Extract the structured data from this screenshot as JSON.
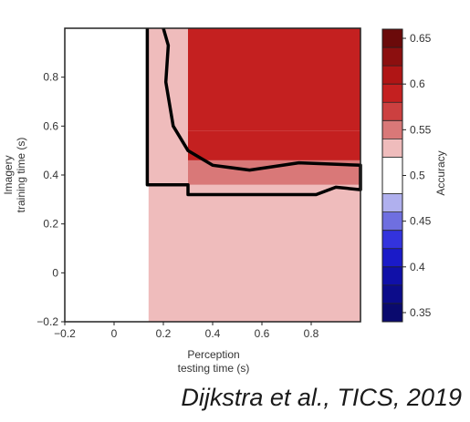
{
  "caption": "Dijkstra et al., TICS, 2019",
  "chart_data": {
    "type": "heatmap",
    "xlabel_lines": [
      "Perception",
      "testing time (s)"
    ],
    "ylabel_lines": [
      "Imagery",
      "training time (s)"
    ],
    "xlim": [
      -0.2,
      1.0
    ],
    "ylim": [
      -0.2,
      1.0
    ],
    "x_ticks": [
      -0.2,
      0,
      0.2,
      0.4,
      0.6,
      0.8
    ],
    "x_tick_labels": [
      "−0.2",
      "0",
      "0.2",
      "0.4",
      "0.6",
      "0.8"
    ],
    "y_ticks": [
      -0.2,
      0,
      0.2,
      0.4,
      0.6,
      0.8
    ],
    "y_tick_labels": [
      "−0.2",
      "0",
      "0.2",
      "0.4",
      "0.6",
      "0.8"
    ],
    "colorbar": {
      "label": "Accuracy",
      "range": [
        0.34,
        0.66
      ],
      "tick_values": [
        0.65,
        0.6,
        0.55,
        0.5,
        0.45,
        0.4,
        0.35
      ],
      "tick_labels": [
        "0.65",
        "0.6",
        "0.55",
        "0.5",
        "0.45",
        "0.4",
        "0.35"
      ],
      "bins": [
        {
          "from": 0.34,
          "to": 0.36,
          "color": "#0a0a6e"
        },
        {
          "from": 0.36,
          "to": 0.38,
          "color": "#0c0c8a"
        },
        {
          "from": 0.38,
          "to": 0.4,
          "color": "#1010a8"
        },
        {
          "from": 0.4,
          "to": 0.42,
          "color": "#1a1ac8"
        },
        {
          "from": 0.42,
          "to": 0.44,
          "color": "#3333dd"
        },
        {
          "from": 0.44,
          "to": 0.46,
          "color": "#6f6fe0"
        },
        {
          "from": 0.46,
          "to": 0.48,
          "color": "#b0b0ee"
        },
        {
          "from": 0.48,
          "to": 0.52,
          "color": "#ffffff"
        },
        {
          "from": 0.52,
          "to": 0.54,
          "color": "#efbcbc"
        },
        {
          "from": 0.54,
          "to": 0.56,
          "color": "#d97878"
        },
        {
          "from": 0.56,
          "to": 0.58,
          "color": "#cc4040"
        },
        {
          "from": 0.58,
          "to": 0.6,
          "color": "#c42020"
        },
        {
          "from": 0.6,
          "to": 0.62,
          "color": "#b01515"
        },
        {
          "from": 0.62,
          "to": 0.64,
          "color": "#8c0f0f"
        },
        {
          "from": 0.64,
          "to": 0.66,
          "color": "#6b0a0a"
        }
      ]
    },
    "regions": [
      {
        "x": [
          -0.2,
          0.14
        ],
        "y": [
          -0.2,
          1.0
        ],
        "accuracy": 0.5
      },
      {
        "x": [
          0.14,
          1.0
        ],
        "y": [
          -0.2,
          0.36
        ],
        "accuracy": 0.52
      },
      {
        "x": [
          0.14,
          0.3
        ],
        "y": [
          0.36,
          1.0
        ],
        "accuracy": 0.53
      },
      {
        "x": [
          0.3,
          1.0
        ],
        "y": [
          0.36,
          0.46
        ],
        "accuracy": 0.55
      },
      {
        "x": [
          0.3,
          1.0
        ],
        "y": [
          0.46,
          0.58
        ],
        "accuracy": 0.58
      },
      {
        "x": [
          0.3,
          1.0
        ],
        "y": [
          0.58,
          1.0
        ],
        "accuracy": 0.59
      }
    ],
    "significance_contour": [
      [
        0.135,
        1.0
      ],
      [
        0.135,
        0.36
      ],
      [
        0.3,
        0.36
      ],
      [
        0.3,
        0.32
      ],
      [
        0.82,
        0.32
      ],
      [
        0.9,
        0.35
      ],
      [
        1.0,
        0.34
      ],
      [
        1.0,
        0.44
      ],
      [
        0.75,
        0.45
      ],
      [
        0.55,
        0.42
      ],
      [
        0.4,
        0.44
      ],
      [
        0.3,
        0.5
      ],
      [
        0.24,
        0.6
      ],
      [
        0.21,
        0.78
      ],
      [
        0.22,
        0.93
      ],
      [
        0.2,
        1.0
      ]
    ]
  }
}
